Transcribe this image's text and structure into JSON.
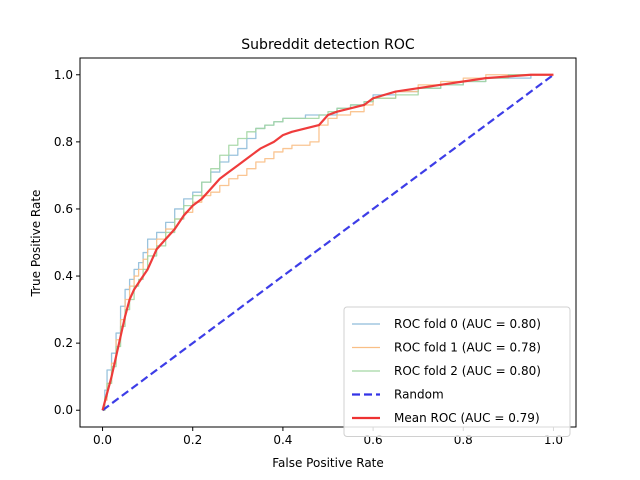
{
  "chart_data": {
    "type": "line",
    "title": "Subreddit detection ROC",
    "xlabel": "False Positive Rate",
    "ylabel": "True Positive Rate",
    "xlim": [
      -0.05,
      1.05
    ],
    "ylim": [
      -0.05,
      1.05
    ],
    "x_ticks": [
      "0.0",
      "0.2",
      "0.4",
      "0.6",
      "0.8",
      "1.0"
    ],
    "y_ticks": [
      "0.0",
      "0.2",
      "0.4",
      "0.6",
      "0.8",
      "1.0"
    ],
    "grid": false,
    "legend_position": "lower-right",
    "series": [
      {
        "name": "ROC fold 0 (AUC = 0.80)",
        "color": "#8fbcd9",
        "style": "step",
        "x": [
          0,
          0.005,
          0.01,
          0.02,
          0.03,
          0.04,
          0.05,
          0.06,
          0.07,
          0.08,
          0.09,
          0.1,
          0.12,
          0.14,
          0.16,
          0.18,
          0.2,
          0.22,
          0.24,
          0.26,
          0.28,
          0.3,
          0.32,
          0.34,
          0.36,
          0.38,
          0.4,
          0.42,
          0.45,
          0.48,
          0.5,
          0.52,
          0.55,
          0.58,
          0.6,
          0.65,
          0.7,
          0.75,
          0.8,
          0.85,
          0.9,
          0.95,
          1.0
        ],
        "y": [
          0,
          0.06,
          0.12,
          0.17,
          0.23,
          0.31,
          0.36,
          0.39,
          0.42,
          0.44,
          0.47,
          0.51,
          0.53,
          0.56,
          0.6,
          0.63,
          0.65,
          0.68,
          0.71,
          0.74,
          0.76,
          0.78,
          0.81,
          0.84,
          0.85,
          0.86,
          0.87,
          0.87,
          0.88,
          0.88,
          0.88,
          0.9,
          0.91,
          0.92,
          0.94,
          0.95,
          0.96,
          0.97,
          0.98,
          0.99,
          0.99,
          1.0,
          1.0
        ]
      },
      {
        "name": "ROC fold 1 (AUC = 0.78)",
        "color": "#f9bf86",
        "style": "step",
        "x": [
          0,
          0.005,
          0.01,
          0.02,
          0.03,
          0.04,
          0.05,
          0.06,
          0.07,
          0.08,
          0.09,
          0.1,
          0.12,
          0.14,
          0.16,
          0.18,
          0.2,
          0.22,
          0.24,
          0.26,
          0.28,
          0.3,
          0.32,
          0.34,
          0.36,
          0.38,
          0.4,
          0.42,
          0.44,
          0.46,
          0.48,
          0.5,
          0.52,
          0.55,
          0.58,
          0.6,
          0.65,
          0.7,
          0.75,
          0.8,
          0.85,
          0.9,
          0.95,
          1.0
        ],
        "y": [
          0,
          0.03,
          0.08,
          0.14,
          0.21,
          0.27,
          0.33,
          0.37,
          0.4,
          0.42,
          0.45,
          0.48,
          0.51,
          0.54,
          0.57,
          0.59,
          0.62,
          0.64,
          0.65,
          0.67,
          0.69,
          0.7,
          0.72,
          0.74,
          0.75,
          0.77,
          0.78,
          0.79,
          0.79,
          0.8,
          0.85,
          0.87,
          0.88,
          0.89,
          0.91,
          0.93,
          0.95,
          0.97,
          0.98,
          0.99,
          1.0,
          1.0,
          1.0,
          1.0
        ]
      },
      {
        "name": "ROC fold 2 (AUC = 0.80)",
        "color": "#a3d6a3",
        "style": "step",
        "x": [
          0,
          0.005,
          0.01,
          0.02,
          0.03,
          0.04,
          0.05,
          0.06,
          0.07,
          0.08,
          0.09,
          0.1,
          0.12,
          0.14,
          0.16,
          0.18,
          0.2,
          0.22,
          0.24,
          0.26,
          0.28,
          0.3,
          0.32,
          0.34,
          0.36,
          0.38,
          0.4,
          0.42,
          0.45,
          0.48,
          0.5,
          0.52,
          0.55,
          0.58,
          0.6,
          0.65,
          0.7,
          0.75,
          0.8,
          0.85,
          0.9,
          0.95,
          1.0
        ],
        "y": [
          0,
          0.04,
          0.08,
          0.13,
          0.19,
          0.25,
          0.3,
          0.33,
          0.37,
          0.39,
          0.42,
          0.46,
          0.49,
          0.53,
          0.57,
          0.61,
          0.64,
          0.68,
          0.72,
          0.76,
          0.79,
          0.81,
          0.83,
          0.84,
          0.85,
          0.86,
          0.87,
          0.87,
          0.87,
          0.88,
          0.89,
          0.9,
          0.91,
          0.92,
          0.93,
          0.94,
          0.96,
          0.97,
          0.98,
          0.99,
          1.0,
          1.0,
          1.0
        ]
      },
      {
        "name": "Random",
        "color": "#3333e6",
        "style": "dashed",
        "x": [
          0,
          1
        ],
        "y": [
          0,
          1
        ]
      },
      {
        "name": "Mean ROC (AUC = 0.79)",
        "color": "#ee3232",
        "style": "solid",
        "x": [
          0,
          0.01,
          0.02,
          0.03,
          0.04,
          0.05,
          0.06,
          0.07,
          0.08,
          0.1,
          0.12,
          0.14,
          0.16,
          0.18,
          0.2,
          0.22,
          0.24,
          0.26,
          0.28,
          0.3,
          0.32,
          0.35,
          0.38,
          0.4,
          0.42,
          0.45,
          0.48,
          0.5,
          0.52,
          0.55,
          0.58,
          0.6,
          0.65,
          0.7,
          0.75,
          0.8,
          0.85,
          0.9,
          0.95,
          1.0
        ],
        "y": [
          0,
          0.05,
          0.1,
          0.16,
          0.22,
          0.28,
          0.33,
          0.36,
          0.38,
          0.42,
          0.48,
          0.51,
          0.54,
          0.58,
          0.61,
          0.63,
          0.66,
          0.69,
          0.71,
          0.73,
          0.75,
          0.78,
          0.8,
          0.82,
          0.83,
          0.84,
          0.85,
          0.88,
          0.89,
          0.9,
          0.91,
          0.93,
          0.95,
          0.96,
          0.97,
          0.98,
          0.99,
          0.995,
          1.0,
          1.0
        ]
      }
    ]
  }
}
